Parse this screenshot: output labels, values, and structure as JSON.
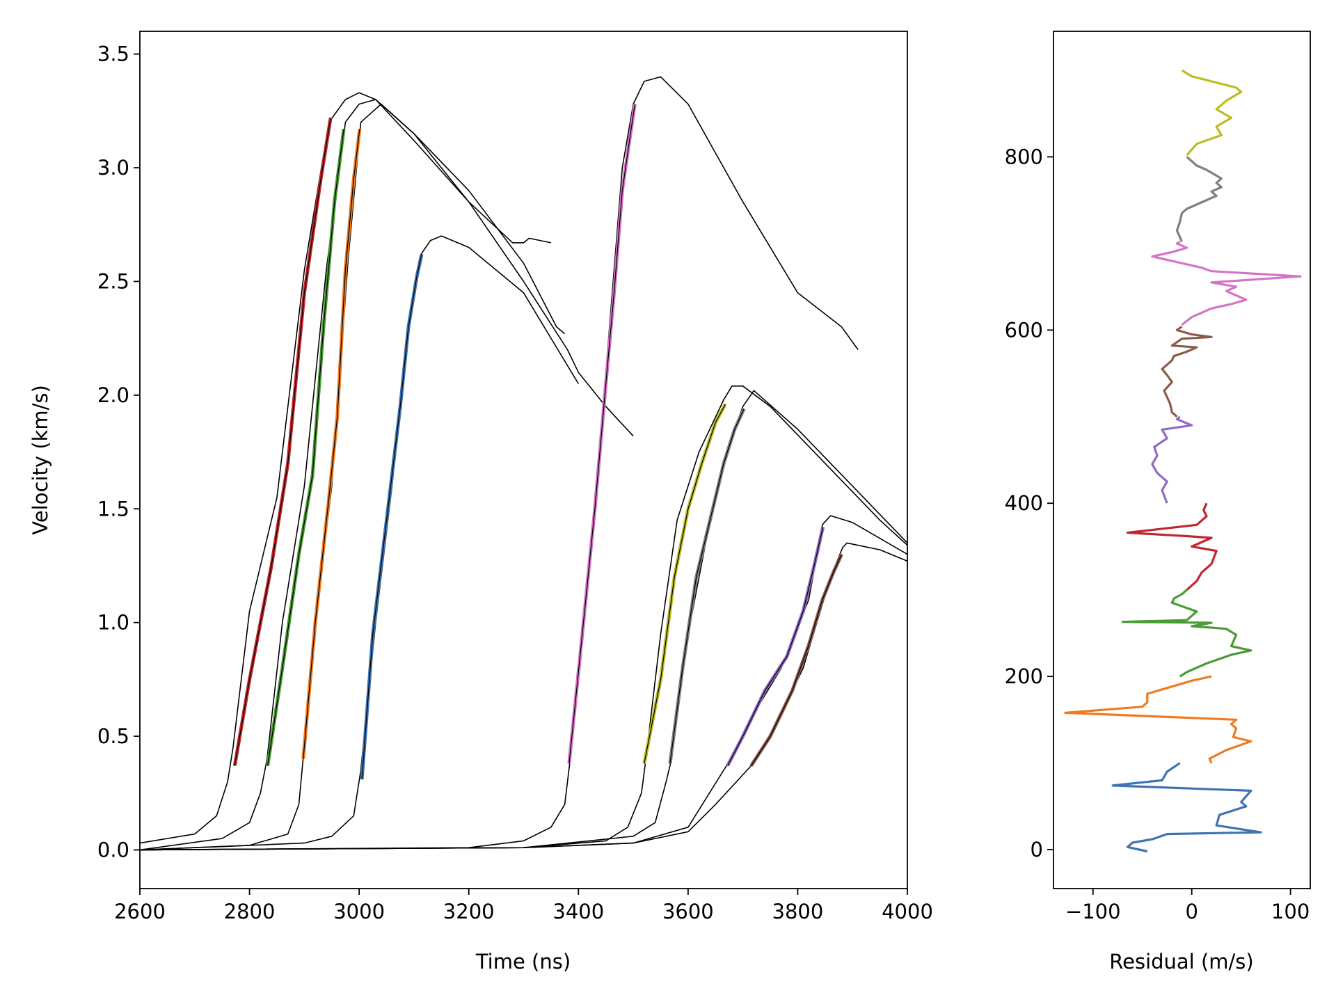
{
  "chart_data": [
    {
      "type": "line",
      "xlabel": "Time (ns)",
      "ylabel": "Velocity (km/s)",
      "xlim": [
        2600,
        4000
      ],
      "ylim": [
        -0.17,
        3.6
      ],
      "xticks": [
        2600,
        2800,
        3000,
        3200,
        3400,
        3600,
        3800,
        4000
      ],
      "xtick_labels": [
        "2600",
        "2800",
        "3000",
        "3200",
        "3400",
        "3600",
        "3800",
        "4000"
      ],
      "yticks": [
        0.0,
        0.5,
        1.0,
        1.5,
        2.0,
        2.5,
        3.0,
        3.5
      ],
      "ytick_labels": [
        "0.0",
        "0.5",
        "1.0",
        "1.5",
        "2.0",
        "2.5",
        "3.0",
        "3.5"
      ],
      "grid": false,
      "measured_traces": [
        {
          "color": "#000000",
          "x": [
            2600,
            2700,
            2740,
            2760,
            2770,
            2800,
            2850,
            2900,
            2945,
            2975,
            3000,
            3030,
            3100,
            3200,
            3280,
            3300,
            3310,
            3330,
            3350
          ],
          "y": [
            0.03,
            0.07,
            0.15,
            0.3,
            0.45,
            1.05,
            1.55,
            2.55,
            3.2,
            3.3,
            3.33,
            3.3,
            3.12,
            2.85,
            2.67,
            2.67,
            2.69,
            2.68,
            2.67
          ]
        },
        {
          "color": "#000000",
          "x": [
            2600,
            2750,
            2800,
            2820,
            2832,
            2860,
            2900,
            2940,
            2975,
            3000,
            3030,
            3100,
            3200,
            3300,
            3380,
            3400,
            3450,
            3500
          ],
          "y": [
            0.0,
            0.05,
            0.12,
            0.25,
            0.4,
            1.0,
            1.6,
            2.55,
            3.2,
            3.28,
            3.3,
            3.15,
            2.85,
            2.5,
            2.2,
            2.1,
            1.95,
            1.82
          ]
        },
        {
          "color": "#000000",
          "x": [
            2600,
            2800,
            2870,
            2890,
            2897,
            2920,
            2950,
            2980,
            3003,
            3040,
            3100,
            3200,
            3300,
            3360,
            3375
          ],
          "y": [
            0.0,
            0.02,
            0.07,
            0.2,
            0.38,
            1.0,
            1.6,
            2.6,
            3.2,
            3.28,
            3.15,
            2.9,
            2.58,
            2.3,
            2.27
          ]
        },
        {
          "color": "#000000",
          "x": [
            2600,
            2900,
            2950,
            2990,
            3003,
            3030,
            3060,
            3090,
            3113,
            3130,
            3150,
            3200,
            3300,
            3400
          ],
          "y": [
            0.0,
            0.03,
            0.06,
            0.15,
            0.35,
            1.0,
            1.6,
            2.3,
            2.62,
            2.68,
            2.7,
            2.65,
            2.45,
            2.05
          ]
        },
        {
          "color": "#000000",
          "x": [
            2600,
            3200,
            3300,
            3350,
            3375,
            3384,
            3410,
            3440,
            3480,
            3500,
            3520,
            3550,
            3600,
            3700,
            3800,
            3880,
            3910
          ],
          "y": [
            0.0,
            0.01,
            0.04,
            0.1,
            0.2,
            0.38,
            1.0,
            1.8,
            3.0,
            3.28,
            3.38,
            3.4,
            3.28,
            2.85,
            2.45,
            2.3,
            2.2
          ]
        },
        {
          "color": "#000000",
          "x": [
            2600,
            3300,
            3450,
            3490,
            3515,
            3522,
            3550,
            3580,
            3620,
            3665,
            3680,
            3700,
            3750,
            3850,
            3950,
            4000
          ],
          "y": [
            0.0,
            0.01,
            0.04,
            0.1,
            0.25,
            0.38,
            0.95,
            1.45,
            1.75,
            1.98,
            2.04,
            2.04,
            1.95,
            1.7,
            1.45,
            1.34
          ]
        },
        {
          "color": "#000000",
          "x": [
            2600,
            3300,
            3500,
            3540,
            3560,
            3568,
            3600,
            3640,
            3670,
            3700,
            3720,
            3800,
            3900,
            4000
          ],
          "y": [
            0.0,
            0.01,
            0.06,
            0.12,
            0.3,
            0.38,
            0.95,
            1.45,
            1.75,
            1.95,
            2.02,
            1.85,
            1.6,
            1.35
          ]
        },
        {
          "color": "#000000",
          "x": [
            2600,
            3300,
            3500,
            3600,
            3670,
            3720,
            3770,
            3820,
            3845,
            3860,
            3900,
            4000
          ],
          "y": [
            0.0,
            0.01,
            0.03,
            0.1,
            0.37,
            0.6,
            0.8,
            1.1,
            1.43,
            1.47,
            1.44,
            1.3
          ]
        },
        {
          "color": "#000000",
          "x": [
            2600,
            3300,
            3500,
            3600,
            3650,
            3715,
            3760,
            3810,
            3860,
            3882,
            3890,
            3950,
            4000
          ],
          "y": [
            0.0,
            0.01,
            0.03,
            0.08,
            0.2,
            0.37,
            0.55,
            0.8,
            1.2,
            1.33,
            1.35,
            1.32,
            1.27
          ]
        }
      ],
      "fit_segments": [
        {
          "color": "#c0272d",
          "x": [
            2773,
            2800,
            2840,
            2870,
            2900,
            2930,
            2948
          ],
          "y": [
            0.37,
            0.75,
            1.25,
            1.7,
            2.45,
            2.95,
            3.22
          ]
        },
        {
          "color": "#4a9a35",
          "x": [
            2833,
            2860,
            2890,
            2915,
            2935,
            2955,
            2972
          ],
          "y": [
            0.37,
            0.8,
            1.3,
            1.65,
            2.3,
            2.85,
            3.17
          ]
        },
        {
          "color": "#ee7b22",
          "x": [
            2898,
            2920,
            2945,
            2960,
            2975,
            2990,
            3001
          ],
          "y": [
            0.4,
            1.0,
            1.55,
            1.9,
            2.55,
            2.95,
            3.17
          ]
        },
        {
          "color": "#3f73b2",
          "x": [
            3005,
            3025,
            3055,
            3075,
            3090,
            3105,
            3114
          ],
          "y": [
            0.31,
            0.95,
            1.55,
            1.95,
            2.3,
            2.52,
            2.62
          ]
        },
        {
          "color": "#d474c6",
          "x": [
            3383,
            3405,
            3430,
            3450,
            3465,
            3480,
            3495,
            3503
          ],
          "y": [
            0.38,
            0.9,
            1.5,
            2.05,
            2.45,
            2.9,
            3.15,
            3.28
          ]
        },
        {
          "color": "#bcbd22",
          "x": [
            3520,
            3550,
            3575,
            3600,
            3625,
            3650,
            3668
          ],
          "y": [
            0.38,
            0.75,
            1.2,
            1.5,
            1.7,
            1.88,
            1.96
          ]
        },
        {
          "color": "#7f7f7f",
          "x": [
            3567,
            3590,
            3615,
            3640,
            3665,
            3685,
            3702
          ],
          "y": [
            0.38,
            0.8,
            1.2,
            1.45,
            1.7,
            1.85,
            1.94
          ]
        },
        {
          "color": "#8f6ac6",
          "x": [
            3672,
            3700,
            3740,
            3780,
            3810,
            3830,
            3846
          ],
          "y": [
            0.37,
            0.5,
            0.7,
            0.85,
            1.05,
            1.25,
            1.42
          ]
        },
        {
          "color": "#8b5a4b",
          "x": [
            3715,
            3750,
            3790,
            3820,
            3845,
            3865,
            3880
          ],
          "y": [
            0.37,
            0.5,
            0.7,
            0.9,
            1.1,
            1.22,
            1.3
          ]
        }
      ]
    },
    {
      "type": "line",
      "xlabel": "Residual (m/s)",
      "ylabel": "",
      "xlim": [
        -140,
        120
      ],
      "ylim": [
        -45,
        945
      ],
      "xticks": [
        -100,
        0,
        100
      ],
      "xtick_labels": [
        "−100",
        "0",
        "100"
      ],
      "yticks": [
        0,
        200,
        400,
        600,
        800
      ],
      "ytick_labels": [
        "0",
        "200",
        "400",
        "600",
        "800"
      ],
      "grid": false,
      "series": [
        {
          "color": "#3f73b2",
          "x": [
            -45,
            -65,
            -60,
            -40,
            -25,
            70,
            25,
            28,
            55,
            50,
            60,
            -80,
            -30,
            -25,
            -12
          ],
          "y": [
            -2,
            3,
            8,
            12,
            18,
            20,
            28,
            40,
            50,
            55,
            68,
            74,
            80,
            90,
            100
          ]
        },
        {
          "color": "#ee7b22",
          "x": [
            20,
            18,
            35,
            60,
            42,
            45,
            40,
            45,
            -128,
            -50,
            -45,
            -45,
            -30,
            0,
            20
          ],
          "y": [
            100,
            105,
            115,
            125,
            130,
            140,
            145,
            150,
            158,
            165,
            170,
            180,
            185,
            195,
            200
          ]
        },
        {
          "color": "#4a9a35",
          "x": [
            -12,
            -5,
            15,
            40,
            60,
            40,
            45,
            35,
            0,
            20,
            -70,
            -5,
            5,
            -20,
            -18,
            -10,
            -5
          ],
          "y": [
            200,
            205,
            215,
            225,
            230,
            235,
            248,
            255,
            258,
            262,
            263,
            265,
            275,
            285,
            290,
            295,
            300
          ]
        },
        {
          "color": "#c0272d",
          "x": [
            -5,
            5,
            10,
            20,
            25,
            0,
            20,
            -5,
            -65,
            5,
            15,
            12,
            15
          ],
          "y": [
            300,
            310,
            320,
            330,
            345,
            350,
            360,
            362,
            366,
            375,
            385,
            392,
            400
          ]
        },
        {
          "color": "#8f6ac6",
          "x": [
            -25,
            -30,
            -25,
            -35,
            -40,
            -35,
            -38,
            -25,
            -30,
            0,
            -15,
            -12
          ],
          "y": [
            400,
            415,
            425,
            435,
            445,
            455,
            465,
            475,
            485,
            490,
            497,
            500
          ]
        },
        {
          "color": "#8b5a4b",
          "x": [
            -15,
            -20,
            -22,
            -28,
            -20,
            -25,
            -30,
            -20,
            -18,
            -5,
            5,
            -20,
            -10,
            20,
            0,
            -15,
            -10
          ],
          "y": [
            500,
            505,
            515,
            530,
            540,
            548,
            555,
            565,
            570,
            575,
            580,
            582,
            590,
            592,
            595,
            600,
            604
          ]
        },
        {
          "color": "#d474c6",
          "x": [
            -10,
            0,
            20,
            40,
            55,
            35,
            45,
            20,
            110,
            20,
            10,
            -40,
            -20,
            -5,
            -15,
            -12
          ],
          "y": [
            606,
            615,
            625,
            630,
            635,
            645,
            650,
            655,
            662,
            668,
            672,
            685,
            690,
            695,
            700,
            702
          ]
        },
        {
          "color": "#7f7f7f",
          "x": [
            -10,
            -15,
            -12,
            -10,
            -5,
            5,
            25,
            20,
            30,
            25,
            30,
            15,
            5,
            0,
            -5
          ],
          "y": [
            702,
            715,
            725,
            735,
            740,
            745,
            755,
            760,
            765,
            770,
            775,
            785,
            790,
            795,
            800
          ]
        },
        {
          "color": "#bcbd22",
          "x": [
            -5,
            5,
            30,
            25,
            40,
            25,
            35,
            50,
            45,
            0,
            -10
          ],
          "y": [
            802,
            815,
            825,
            835,
            845,
            855,
            865,
            875,
            880,
            893,
            900
          ]
        }
      ]
    }
  ]
}
